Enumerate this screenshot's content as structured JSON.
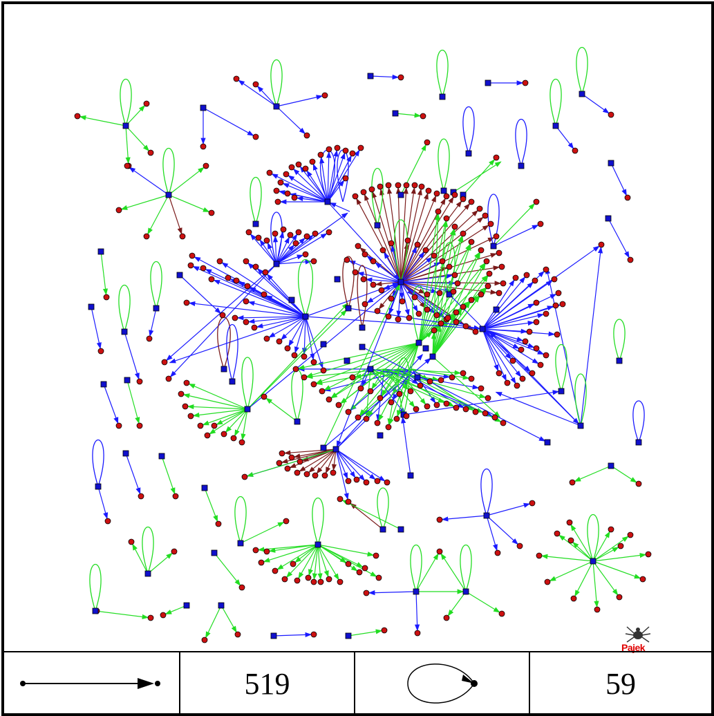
{
  "legend": {
    "arc_count": "519",
    "loop_count": "59"
  },
  "logo": {
    "text": "Pajek"
  },
  "colors": {
    "arc_blue": "#1a1aff",
    "arc_green": "#22dd22",
    "arc_brown": "#7a1a1a",
    "square_node": "#1010cc",
    "circle_node": "#cc1111",
    "logo_red": "#e00000"
  }
}
